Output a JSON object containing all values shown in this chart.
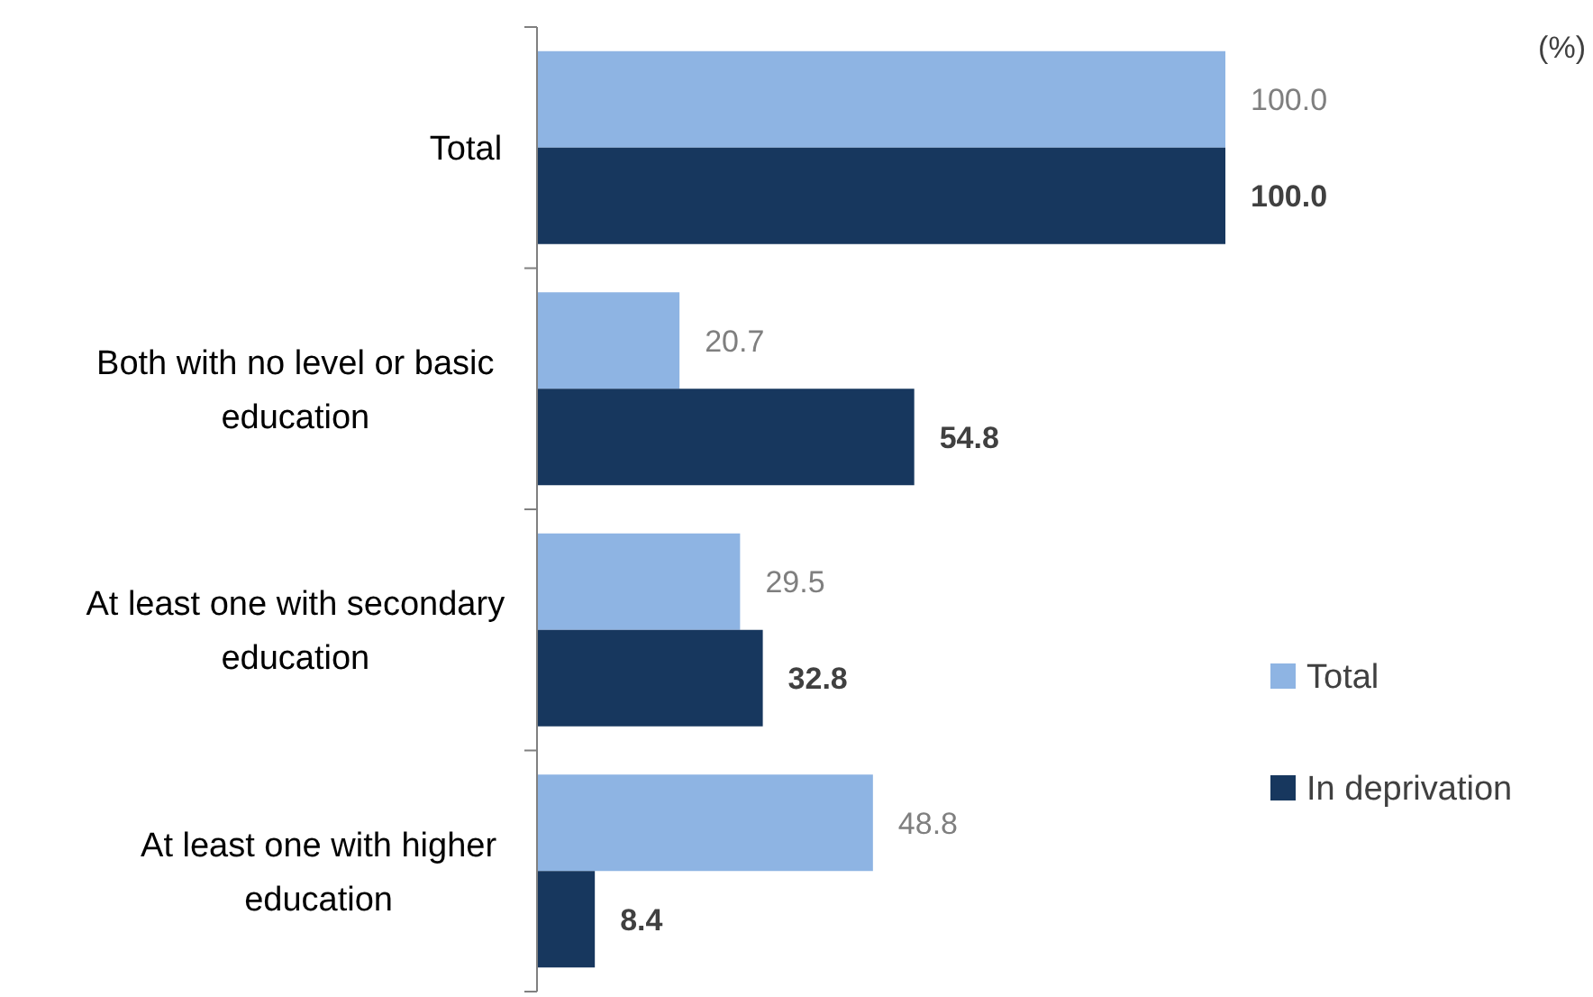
{
  "chart_data": {
    "type": "bar",
    "orientation": "horizontal",
    "categories": [
      "Total",
      "Both with no level or basic education",
      "At least one with secondary education",
      "At least one with higher education"
    ],
    "series": [
      {
        "name": "Total",
        "color": "#8eb4e3",
        "values": [
          100.0,
          20.7,
          29.5,
          48.8
        ],
        "value_labels": [
          "100.0",
          "20.7",
          "29.5",
          "48.8"
        ]
      },
      {
        "name": "In deprivation",
        "color": "#17375e",
        "values": [
          100.0,
          54.8,
          32.8,
          8.4
        ],
        "value_labels": [
          "100.0",
          "54.8",
          "32.8",
          "8.4"
        ]
      }
    ],
    "legend": "right",
    "annotations": [
      "(%)"
    ]
  }
}
